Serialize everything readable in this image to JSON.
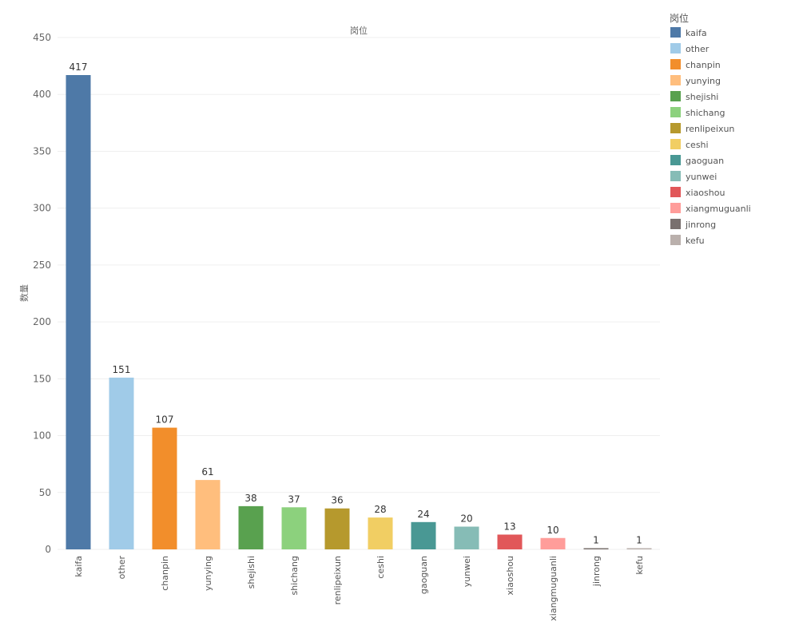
{
  "chart_data": {
    "type": "bar",
    "title": "岗位",
    "xlabel": "",
    "ylabel": "数量",
    "ylim": [
      0,
      450
    ],
    "yticks": [
      0,
      50,
      100,
      150,
      200,
      250,
      300,
      350,
      400,
      450
    ],
    "grid": true,
    "legend": {
      "title": "岗位",
      "placement": "top-right"
    },
    "categories": [
      "kaifa",
      "other",
      "chanpin",
      "yunying",
      "shejishi",
      "shichang",
      "renlipeixun",
      "ceshi",
      "gaoguan",
      "yunwei",
      "xiaoshou",
      "xiangmuguanli",
      "jinrong",
      "kefu"
    ],
    "values": [
      417,
      151,
      107,
      61,
      38,
      37,
      36,
      28,
      24,
      20,
      13,
      10,
      1,
      1
    ],
    "colors": [
      "#4e79a7",
      "#a0cbe8",
      "#f28e2b",
      "#ffbe7d",
      "#59a14f",
      "#8cd17d",
      "#b6992d",
      "#f1ce63",
      "#499894",
      "#86bcb6",
      "#e15759",
      "#ff9d9a",
      "#79706e",
      "#bab0ac"
    ]
  }
}
